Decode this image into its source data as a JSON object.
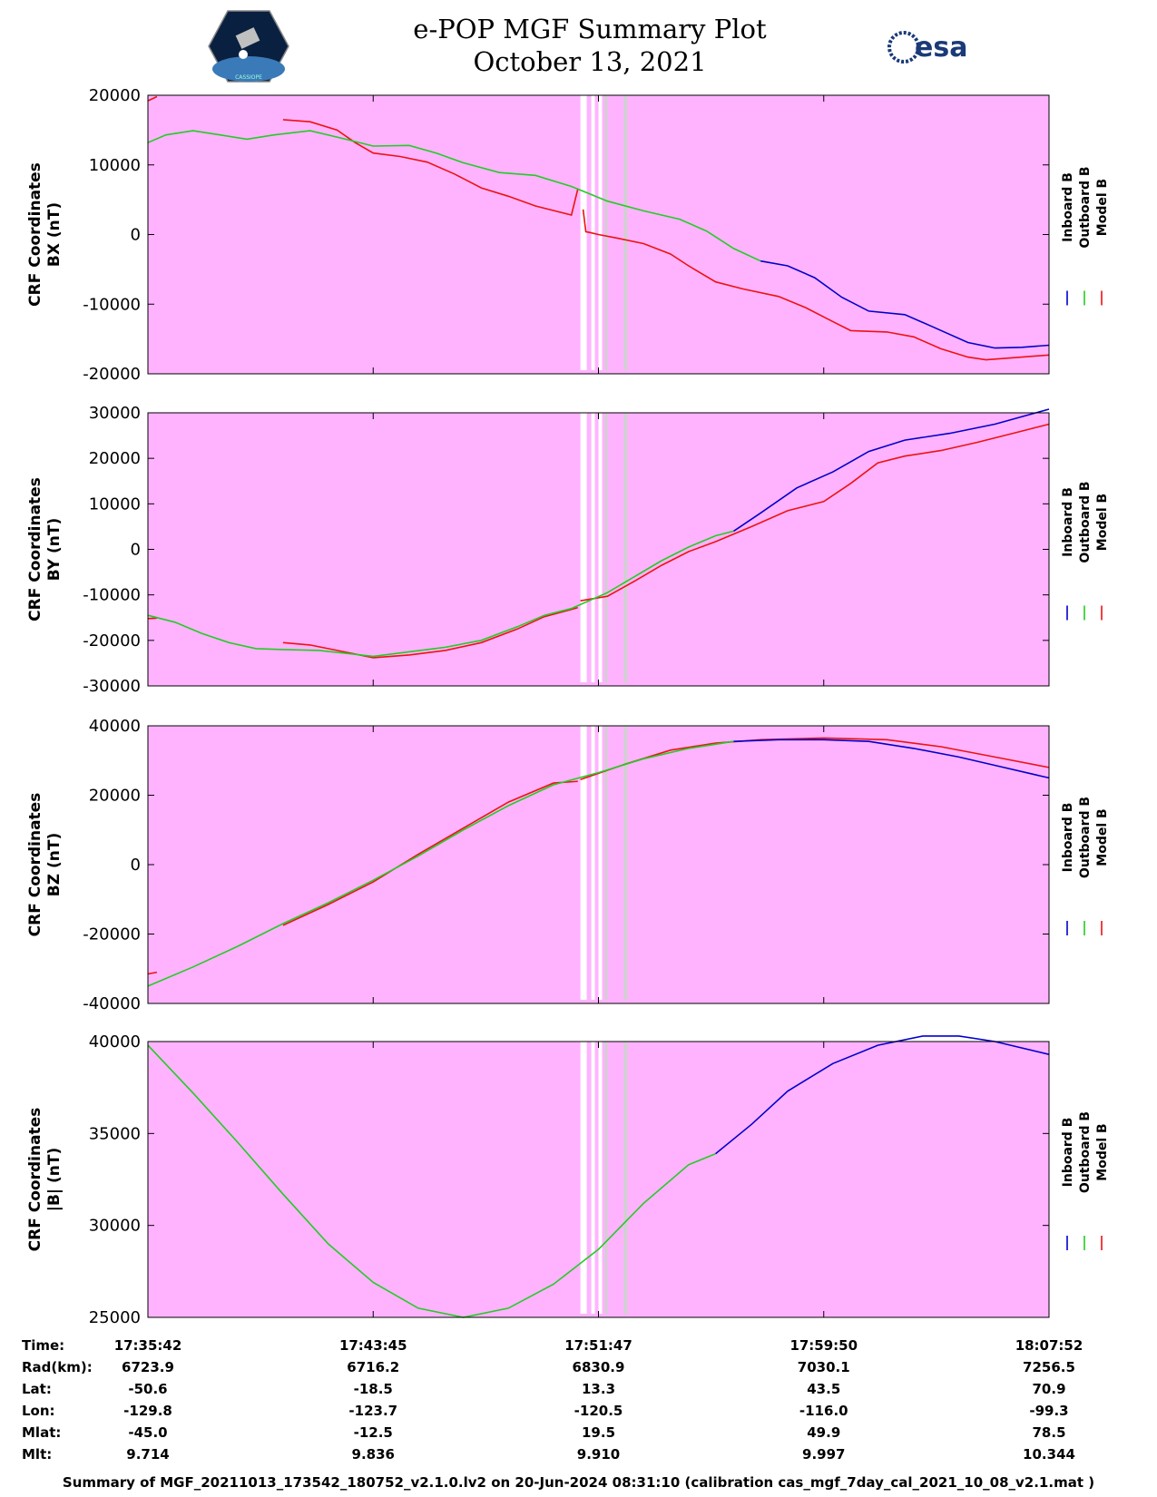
{
  "header": {
    "title": "e-POP MGF Summary Plot",
    "date": "October 13, 2021",
    "logo_left_text": "CASSIOPE",
    "logo_right_text": "esa"
  },
  "colors": {
    "background": "#ffb3ff",
    "inboard": "#0000cc",
    "outboard": "#22cc22",
    "model": "#ee1111",
    "gap_white": "#ffffff",
    "gap_grey": "#d0d0d0"
  },
  "legend": [
    "Inboard B",
    "Outboard B",
    "Model B"
  ],
  "chart_data": [
    {
      "type": "line",
      "ylabel": [
        "CRF Coordinates",
        "BX (nT)"
      ],
      "ylim": [
        -20000,
        20000
      ],
      "yticks": [
        "20000",
        "10000",
        "0",
        "-10000",
        "-20000"
      ],
      "ytick_values": [
        20000,
        10000,
        0,
        -10000,
        -20000
      ],
      "series": [
        {
          "name": "Model B",
          "segments": [
            [
              [
                0.0,
                19200
              ],
              [
                0.01,
                19800
              ]
            ],
            [
              [
                0.15,
                16500
              ],
              [
                0.18,
                16200
              ],
              [
                0.21,
                15000
              ],
              [
                0.23,
                13200
              ],
              [
                0.25,
                11700
              ],
              [
                0.28,
                11200
              ],
              [
                0.31,
                10400
              ],
              [
                0.34,
                8700
              ],
              [
                0.37,
                6700
              ],
              [
                0.4,
                5500
              ],
              [
                0.43,
                4100
              ],
              [
                0.47,
                2800
              ],
              [
                0.477,
                6500
              ]
            ],
            [
              [
                0.483,
                3600
              ],
              [
                0.486,
                400
              ],
              [
                0.49,
                300
              ],
              [
                0.5,
                0
              ],
              [
                0.52,
                -500
              ],
              [
                0.55,
                -1300
              ],
              [
                0.58,
                -2800
              ],
              [
                0.6,
                -4500
              ],
              [
                0.63,
                -6800
              ],
              [
                0.66,
                -7800
              ],
              [
                0.7,
                -8900
              ],
              [
                0.73,
                -10500
              ],
              [
                0.76,
                -12500
              ],
              [
                0.78,
                -13800
              ],
              [
                0.82,
                -14000
              ],
              [
                0.85,
                -14700
              ],
              [
                0.88,
                -16400
              ],
              [
                0.91,
                -17600
              ],
              [
                0.93,
                -18000
              ],
              [
                0.96,
                -17700
              ],
              [
                1.0,
                -17300
              ]
            ]
          ]
        },
        {
          "name": "Outboard B",
          "segments": [
            [
              [
                0.0,
                13200
              ],
              [
                0.02,
                14300
              ],
              [
                0.05,
                14900
              ],
              [
                0.08,
                14300
              ],
              [
                0.11,
                13700
              ],
              [
                0.14,
                14300
              ],
              [
                0.18,
                14900
              ],
              [
                0.21,
                14000
              ],
              [
                0.25,
                12700
              ],
              [
                0.29,
                12800
              ],
              [
                0.32,
                11700
              ],
              [
                0.35,
                10300
              ],
              [
                0.39,
                8900
              ],
              [
                0.43,
                8500
              ],
              [
                0.47,
                6900
              ],
              [
                0.51,
                4800
              ],
              [
                0.55,
                3400
              ],
              [
                0.59,
                2200
              ],
              [
                0.62,
                500
              ],
              [
                0.65,
                -2000
              ],
              [
                0.68,
                -3800
              ]
            ]
          ]
        },
        {
          "name": "Inboard B",
          "segments": [
            [
              [
                0.68,
                -3800
              ],
              [
                0.71,
                -4500
              ],
              [
                0.74,
                -6200
              ],
              [
                0.77,
                -9000
              ],
              [
                0.8,
                -11000
              ],
              [
                0.84,
                -11500
              ],
              [
                0.87,
                -13200
              ],
              [
                0.91,
                -15500
              ],
              [
                0.94,
                -16300
              ],
              [
                0.97,
                -16200
              ],
              [
                1.0,
                -15900
              ]
            ]
          ]
        }
      ]
    },
    {
      "type": "line",
      "ylabel": [
        "CRF Coordinates",
        "BY (nT)"
      ],
      "ylim": [
        -30000,
        30000
      ],
      "yticks": [
        "30000",
        "20000",
        "10000",
        "0",
        "-10000",
        "-20000",
        "-30000"
      ],
      "ytick_values": [
        30000,
        20000,
        10000,
        0,
        -10000,
        -20000,
        -30000
      ],
      "series": [
        {
          "name": "Model B",
          "segments": [
            [
              [
                0.0,
                -15200
              ],
              [
                0.01,
                -15100
              ]
            ],
            [
              [
                0.15,
                -20500
              ],
              [
                0.18,
                -21000
              ],
              [
                0.21,
                -22200
              ],
              [
                0.25,
                -23800
              ],
              [
                0.29,
                -23200
              ],
              [
                0.33,
                -22200
              ],
              [
                0.37,
                -20500
              ],
              [
                0.41,
                -17500
              ],
              [
                0.44,
                -14800
              ],
              [
                0.47,
                -13200
              ],
              [
                0.477,
                -12800
              ]
            ],
            [
              [
                0.48,
                -11300
              ],
              [
                0.51,
                -10300
              ],
              [
                0.54,
                -7000
              ],
              [
                0.57,
                -3500
              ],
              [
                0.6,
                -500
              ],
              [
                0.63,
                1700
              ],
              [
                0.67,
                5000
              ],
              [
                0.71,
                8500
              ],
              [
                0.75,
                10500
              ],
              [
                0.78,
                14500
              ],
              [
                0.81,
                19000
              ],
              [
                0.84,
                20500
              ],
              [
                0.88,
                21700
              ],
              [
                0.92,
                23500
              ],
              [
                0.96,
                25500
              ],
              [
                1.0,
                27500
              ]
            ]
          ]
        },
        {
          "name": "Outboard B",
          "segments": [
            [
              [
                0.0,
                -14500
              ],
              [
                0.03,
                -16000
              ],
              [
                0.06,
                -18500
              ],
              [
                0.09,
                -20500
              ],
              [
                0.12,
                -21800
              ],
              [
                0.15,
                -22000
              ],
              [
                0.19,
                -22200
              ],
              [
                0.25,
                -23500
              ],
              [
                0.29,
                -22500
              ],
              [
                0.33,
                -21500
              ],
              [
                0.37,
                -20000
              ],
              [
                0.41,
                -17000
              ],
              [
                0.44,
                -14500
              ],
              [
                0.47,
                -13000
              ],
              [
                0.51,
                -9500
              ],
              [
                0.54,
                -6000
              ],
              [
                0.57,
                -2500
              ],
              [
                0.6,
                500
              ],
              [
                0.63,
                3000
              ],
              [
                0.65,
                4000
              ]
            ]
          ]
        },
        {
          "name": "Inboard B",
          "segments": [
            [
              [
                0.65,
                4000
              ],
              [
                0.68,
                8000
              ],
              [
                0.72,
                13500
              ],
              [
                0.76,
                17000
              ],
              [
                0.8,
                21500
              ],
              [
                0.84,
                24000
              ],
              [
                0.89,
                25500
              ],
              [
                0.94,
                27500
              ],
              [
                1.0,
                30800
              ]
            ]
          ]
        }
      ]
    },
    {
      "type": "line",
      "ylabel": [
        "CRF Coordinates",
        "BZ (nT)"
      ],
      "ylim": [
        -40000,
        40000
      ],
      "yticks": [
        "40000",
        "20000",
        "0",
        "-20000",
        "-40000"
      ],
      "ytick_values": [
        40000,
        20000,
        0,
        -20000,
        -40000
      ],
      "series": [
        {
          "name": "Model B",
          "segments": [
            [
              [
                0.0,
                -31500
              ],
              [
                0.01,
                -31000
              ]
            ],
            [
              [
                0.15,
                -17500
              ],
              [
                0.2,
                -11500
              ],
              [
                0.25,
                -5000
              ],
              [
                0.3,
                3000
              ],
              [
                0.35,
                10500
              ],
              [
                0.4,
                18000
              ],
              [
                0.45,
                23500
              ],
              [
                0.477,
                24000
              ]
            ],
            [
              [
                0.48,
                24500
              ],
              [
                0.53,
                29000
              ],
              [
                0.58,
                33000
              ],
              [
                0.63,
                35000
              ],
              [
                0.68,
                36000
              ],
              [
                0.75,
                36500
              ],
              [
                0.82,
                36000
              ],
              [
                0.88,
                34000
              ],
              [
                0.94,
                31000
              ],
              [
                1.0,
                28000
              ]
            ]
          ]
        },
        {
          "name": "Outboard B",
          "segments": [
            [
              [
                0.0,
                -35000
              ],
              [
                0.05,
                -29500
              ],
              [
                0.1,
                -23500
              ],
              [
                0.15,
                -17000
              ],
              [
                0.2,
                -11000
              ],
              [
                0.25,
                -4500
              ],
              [
                0.3,
                2500
              ],
              [
                0.35,
                10000
              ],
              [
                0.4,
                17000
              ],
              [
                0.45,
                23000
              ],
              [
                0.5,
                26500
              ],
              [
                0.55,
                30500
              ],
              [
                0.6,
                33500
              ],
              [
                0.65,
                35500
              ]
            ]
          ]
        },
        {
          "name": "Inboard B",
          "segments": [
            [
              [
                0.65,
                35500
              ],
              [
                0.7,
                36000
              ],
              [
                0.75,
                36000
              ],
              [
                0.8,
                35500
              ],
              [
                0.85,
                33500
              ],
              [
                0.9,
                31000
              ],
              [
                0.95,
                28000
              ],
              [
                1.0,
                25000
              ]
            ]
          ]
        }
      ]
    },
    {
      "type": "line",
      "ylabel": [
        "CRF Coordinates",
        "|B| (nT)"
      ],
      "ylim": [
        25000,
        40000
      ],
      "yticks": [
        "40000",
        "35000",
        "30000",
        "25000"
      ],
      "ytick_values": [
        40000,
        35000,
        30000,
        25000
      ],
      "series": [
        {
          "name": "Model B",
          "segments": []
        },
        {
          "name": "Outboard B",
          "segments": [
            [
              [
                0.0,
                39800
              ],
              [
                0.05,
                37200
              ],
              [
                0.1,
                34500
              ],
              [
                0.15,
                31700
              ],
              [
                0.2,
                29000
              ],
              [
                0.25,
                26900
              ],
              [
                0.3,
                25500
              ],
              [
                0.35,
                25000
              ],
              [
                0.4,
                25500
              ],
              [
                0.45,
                26800
              ],
              [
                0.5,
                28700
              ],
              [
                0.55,
                31200
              ],
              [
                0.6,
                33300
              ],
              [
                0.63,
                33900
              ]
            ]
          ]
        },
        {
          "name": "Inboard B",
          "segments": [
            [
              [
                0.63,
                33900
              ],
              [
                0.67,
                35500
              ],
              [
                0.71,
                37300
              ],
              [
                0.76,
                38800
              ],
              [
                0.81,
                39800
              ],
              [
                0.86,
                40300
              ],
              [
                0.9,
                40300
              ],
              [
                0.94,
                40000
              ],
              [
                1.0,
                39300
              ]
            ]
          ]
        }
      ]
    }
  ],
  "gaps": {
    "white": [
      [
        0.48,
        0.487
      ],
      [
        0.492,
        0.496
      ],
      [
        0.5,
        0.504
      ]
    ],
    "grey": [
      [
        0.507,
        0.51
      ],
      [
        0.528,
        0.532
      ]
    ]
  },
  "ephemeris": {
    "labels": [
      "Time:",
      "Rad(km):",
      "Lat:",
      "Lon:",
      "Mlat:",
      "Mlt:"
    ],
    "columns": [
      [
        "17:35:42",
        "6723.9",
        "-50.6",
        "-129.8",
        "-45.0",
        "9.714"
      ],
      [
        "17:43:45",
        "6716.2",
        "-18.5",
        "-123.7",
        "-12.5",
        "9.836"
      ],
      [
        "17:51:47",
        "6830.9",
        "13.3",
        "-120.5",
        "19.5",
        "9.910"
      ],
      [
        "17:59:50",
        "7030.1",
        "43.5",
        "-116.0",
        "49.9",
        "9.997"
      ],
      [
        "18:07:52",
        "7256.5",
        "70.9",
        "-99.3",
        "78.5",
        "10.344"
      ]
    ]
  },
  "footer": "Summary of MGF_20211013_173542_180752_v2.1.0.lv2 on 20-Jun-2024 08:31:10 (calibration cas_mgf_7day_cal_2021_10_08_v2.1.mat )"
}
